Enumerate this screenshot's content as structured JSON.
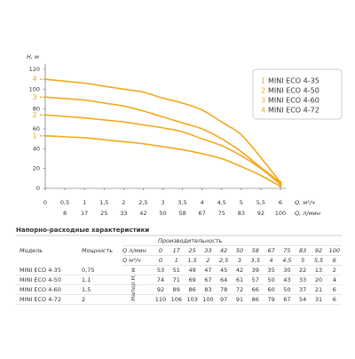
{
  "chart_data": {
    "type": "line",
    "y_label": "H, м",
    "x_label": "Q, м³/ч",
    "x2_label": "Q, л/мин",
    "x": [
      0,
      1,
      1.5,
      2,
      2.5,
      3,
      3.5,
      4,
      4.5,
      5,
      5.5,
      6
    ],
    "series": [
      {
        "marker": "1",
        "name": "MINI ECO 4-35",
        "color": "#f2a81d",
        "values": [
          53,
          51,
          49,
          47,
          45,
          42,
          39,
          35,
          30,
          22,
          13,
          2
        ]
      },
      {
        "marker": "2",
        "name": "MINI ECO 4-50",
        "color": "#f2a81d",
        "values": [
          74,
          71,
          69,
          67,
          64,
          61,
          57,
          50,
          43,
          33,
          20,
          4
        ]
      },
      {
        "marker": "3",
        "name": "MINI ECO 4-60",
        "color": "#f2a81d",
        "values": [
          92,
          89,
          86,
          83,
          78,
          72,
          66,
          60,
          50,
          37,
          21,
          6
        ]
      },
      {
        "marker": "4",
        "name": "MINI ECO 4-72",
        "color": "#f2a81d",
        "values": [
          110,
          106,
          103,
          100,
          97,
          91,
          86,
          79,
          67,
          54,
          31,
          6
        ]
      }
    ],
    "xlim": [
      0,
      6
    ],
    "ylim": [
      0,
      120
    ],
    "yticks": [
      0,
      20,
      40,
      60,
      80,
      100,
      120
    ],
    "xticks": [
      0,
      {
        "value": 0.5,
        "label": "0,5"
      },
      1,
      {
        "value": 1.5,
        "label": "1,5"
      },
      2,
      {
        "value": 2.5,
        "label": "2,5"
      },
      3,
      {
        "value": 3.5,
        "label": "3,5"
      },
      4,
      {
        "value": 4.5,
        "label": "4,5"
      },
      5,
      {
        "value": 5.5,
        "label": "5,5"
      },
      6
    ],
    "x2ticks": [
      {
        "value": 0.5,
        "label": "8"
      },
      {
        "value": 1,
        "label": "17"
      },
      {
        "value": 1.5,
        "label": "25"
      },
      {
        "value": 2,
        "label": "33"
      },
      {
        "value": 2.5,
        "label": "42"
      },
      {
        "value": 3,
        "label": "50"
      },
      {
        "value": 3.5,
        "label": "58"
      },
      {
        "value": 4,
        "label": "67"
      },
      {
        "value": 4.5,
        "label": "75"
      },
      {
        "value": 5,
        "label": "83"
      },
      {
        "value": 5.5,
        "label": "92"
      },
      {
        "value": 6,
        "label": "100"
      }
    ]
  },
  "table": {
    "title": "Напорно-расходные характеристики",
    "group_header": "Производительность",
    "col_model": "Модель",
    "col_power": "Мощность",
    "q_lmin_label": "Q л/мин",
    "q_m3h_label": "Q м³/ч",
    "head_label": "Напор Н, м",
    "q_lmin": [
      0,
      17,
      25,
      33,
      42,
      50,
      58,
      67,
      75,
      83,
      92,
      100
    ],
    "q_m3h": [
      0,
      1,
      "1,5",
      2,
      "2,5",
      3,
      "3,5",
      4,
      "4,5",
      5,
      "5,5",
      6
    ],
    "rows": [
      {
        "model": "MINI ECO 4-35",
        "power": "0,75",
        "values": [
          53,
          51,
          49,
          47,
          45,
          42,
          39,
          35,
          30,
          22,
          13,
          2
        ]
      },
      {
        "model": "MINI ECO 4-50",
        "power": "1,1",
        "values": [
          74,
          71,
          69,
          67,
          64,
          61,
          57,
          50,
          43,
          33,
          20,
          4
        ]
      },
      {
        "model": "MINI ECO 4-60",
        "power": "1,5",
        "values": [
          92,
          89,
          86,
          83,
          78,
          72,
          66,
          60,
          50,
          37,
          21,
          6
        ]
      },
      {
        "model": "MINI ECO 4-72",
        "power": "2",
        "values": [
          110,
          106,
          103,
          100,
          97,
          91,
          86,
          79,
          67,
          54,
          31,
          6
        ]
      }
    ]
  }
}
